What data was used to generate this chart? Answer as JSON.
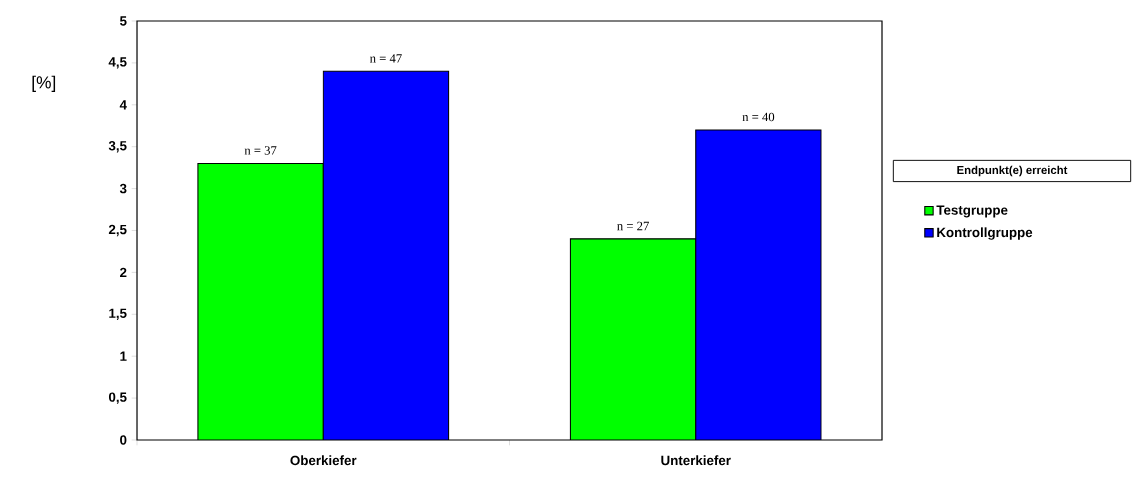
{
  "chart_data": {
    "type": "bar",
    "ylabel": "[%]",
    "legend_title": "Endpunkt(e) erreicht",
    "categories": [
      "Oberkiefer",
      "Unterkiefer"
    ],
    "series": [
      {
        "name": "Testgruppe",
        "color": "#00ff00",
        "values": [
          3.3,
          2.4
        ]
      },
      {
        "name": "Kontrollgruppe",
        "color": "#0000ff",
        "values": [
          4.4,
          3.7
        ]
      }
    ],
    "annotations": [
      "n = 37",
      "n = 47",
      "n = 27",
      "n = 40"
    ],
    "ylim": [
      0,
      5
    ],
    "yticks": [
      0,
      {
        "value": 0.5,
        "label": "0,5"
      },
      1,
      {
        "value": 1.5,
        "label": "1,5"
      },
      2,
      {
        "value": 2.5,
        "label": "2,5"
      },
      3,
      {
        "value": 3.5,
        "label": "3,5"
      },
      4,
      {
        "value": 4.5,
        "label": "4,5"
      },
      5
    ],
    "grid": false,
    "legend": "right"
  }
}
